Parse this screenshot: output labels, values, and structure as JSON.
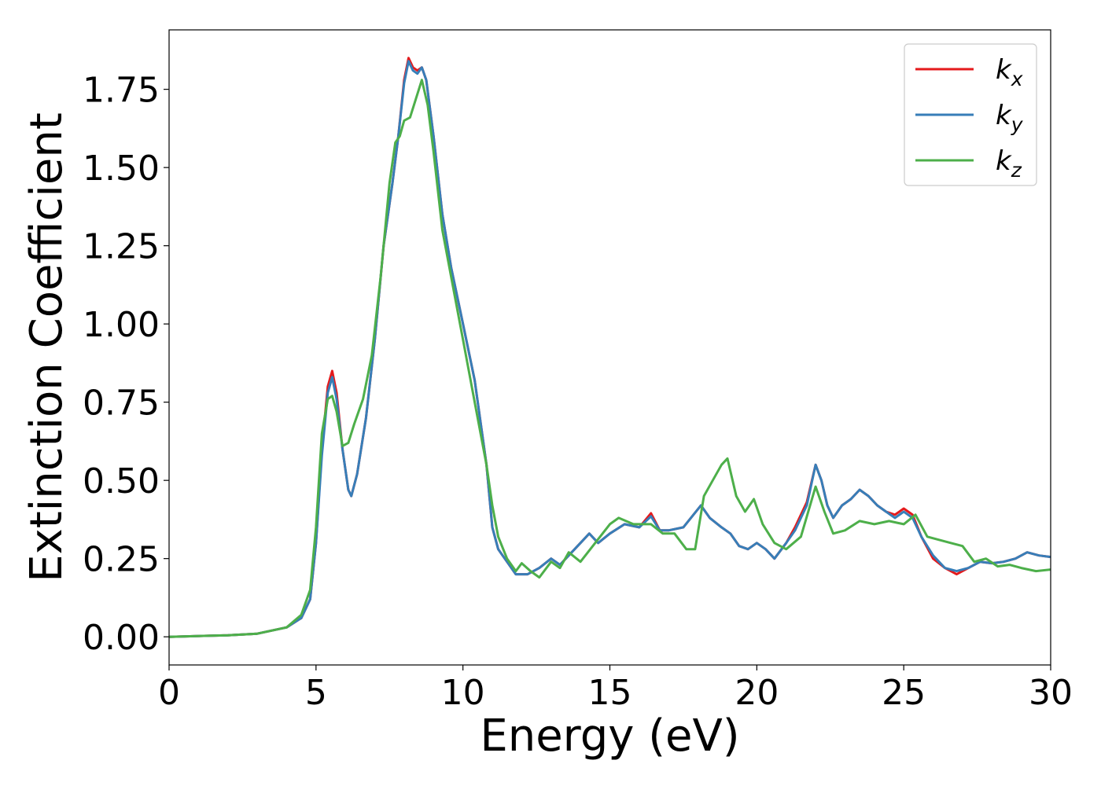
{
  "chart_data": {
    "type": "line",
    "title": "",
    "xlabel": "Energy (eV)",
    "ylabel": "Extinction Coefficient",
    "xlim": [
      0,
      30
    ],
    "ylim": [
      -0.09,
      1.94
    ],
    "xticks": [
      0,
      5,
      10,
      15,
      20,
      25,
      30
    ],
    "xtick_labels": [
      "0",
      "5",
      "10",
      "15",
      "20",
      "25",
      "30"
    ],
    "yticks": [
      0.0,
      0.25,
      0.5,
      0.75,
      1.0,
      1.25,
      1.5,
      1.75
    ],
    "ytick_labels": [
      "0.00",
      "0.25",
      "0.50",
      "0.75",
      "1.00",
      "1.25",
      "1.50",
      "1.75"
    ],
    "grid": false,
    "legend": "top-right",
    "series": [
      {
        "name": "k",
        "subscript": "x",
        "color": "#e41a1c",
        "points": [
          [
            0,
            0
          ],
          [
            2,
            0.005
          ],
          [
            3,
            0.01
          ],
          [
            4,
            0.03
          ],
          [
            4.5,
            0.06
          ],
          [
            4.8,
            0.12
          ],
          [
            5.0,
            0.3
          ],
          [
            5.2,
            0.6
          ],
          [
            5.4,
            0.8
          ],
          [
            5.55,
            0.85
          ],
          [
            5.7,
            0.78
          ],
          [
            5.9,
            0.6
          ],
          [
            6.1,
            0.47
          ],
          [
            6.2,
            0.45
          ],
          [
            6.4,
            0.52
          ],
          [
            6.7,
            0.7
          ],
          [
            7.0,
            0.95
          ],
          [
            7.3,
            1.25
          ],
          [
            7.6,
            1.45
          ],
          [
            7.8,
            1.6
          ],
          [
            8.0,
            1.78
          ],
          [
            8.15,
            1.85
          ],
          [
            8.3,
            1.82
          ],
          [
            8.45,
            1.81
          ],
          [
            8.6,
            1.82
          ],
          [
            8.75,
            1.78
          ],
          [
            9.0,
            1.6
          ],
          [
            9.3,
            1.35
          ],
          [
            9.6,
            1.18
          ],
          [
            10.0,
            1.0
          ],
          [
            10.4,
            0.82
          ],
          [
            10.8,
            0.55
          ],
          [
            11.0,
            0.35
          ],
          [
            11.2,
            0.28
          ],
          [
            11.5,
            0.24
          ],
          [
            11.8,
            0.2
          ],
          [
            12.2,
            0.2
          ],
          [
            12.6,
            0.22
          ],
          [
            13.0,
            0.25
          ],
          [
            13.3,
            0.23
          ],
          [
            13.6,
            0.26
          ],
          [
            14.0,
            0.3
          ],
          [
            14.3,
            0.33
          ],
          [
            14.6,
            0.3
          ],
          [
            15.0,
            0.33
          ],
          [
            15.5,
            0.36
          ],
          [
            16.0,
            0.35
          ],
          [
            16.4,
            0.395
          ],
          [
            16.7,
            0.34
          ],
          [
            17.0,
            0.34
          ],
          [
            17.5,
            0.35
          ],
          [
            18.1,
            0.42
          ],
          [
            18.4,
            0.38
          ],
          [
            18.8,
            0.35
          ],
          [
            19.1,
            0.33
          ],
          [
            19.4,
            0.29
          ],
          [
            19.7,
            0.28
          ],
          [
            20.0,
            0.3
          ],
          [
            20.3,
            0.28
          ],
          [
            20.6,
            0.25
          ],
          [
            21.0,
            0.3
          ],
          [
            21.3,
            0.35
          ],
          [
            21.7,
            0.43
          ],
          [
            22.0,
            0.55
          ],
          [
            22.2,
            0.5
          ],
          [
            22.4,
            0.42
          ],
          [
            22.6,
            0.38
          ],
          [
            22.9,
            0.42
          ],
          [
            23.2,
            0.44
          ],
          [
            23.5,
            0.47
          ],
          [
            23.8,
            0.45
          ],
          [
            24.1,
            0.42
          ],
          [
            24.4,
            0.4
          ],
          [
            24.7,
            0.39
          ],
          [
            25.0,
            0.41
          ],
          [
            25.3,
            0.39
          ],
          [
            25.6,
            0.32
          ],
          [
            26.0,
            0.25
          ],
          [
            26.4,
            0.22
          ],
          [
            26.8,
            0.2
          ],
          [
            27.2,
            0.22
          ],
          [
            27.6,
            0.24
          ],
          [
            28.0,
            0.235
          ],
          [
            28.4,
            0.24
          ],
          [
            28.8,
            0.25
          ],
          [
            29.2,
            0.27
          ],
          [
            29.6,
            0.26
          ],
          [
            30.0,
            0.255
          ]
        ]
      },
      {
        "name": "k",
        "subscript": "y",
        "color": "#377eb8",
        "points": [
          [
            0,
            0
          ],
          [
            2,
            0.005
          ],
          [
            3,
            0.01
          ],
          [
            4,
            0.03
          ],
          [
            4.5,
            0.06
          ],
          [
            4.8,
            0.12
          ],
          [
            5.0,
            0.3
          ],
          [
            5.2,
            0.58
          ],
          [
            5.4,
            0.78
          ],
          [
            5.55,
            0.83
          ],
          [
            5.7,
            0.76
          ],
          [
            5.9,
            0.6
          ],
          [
            6.1,
            0.47
          ],
          [
            6.2,
            0.45
          ],
          [
            6.4,
            0.52
          ],
          [
            6.7,
            0.7
          ],
          [
            7.0,
            0.95
          ],
          [
            7.3,
            1.25
          ],
          [
            7.6,
            1.45
          ],
          [
            7.8,
            1.6
          ],
          [
            8.0,
            1.77
          ],
          [
            8.15,
            1.84
          ],
          [
            8.3,
            1.81
          ],
          [
            8.45,
            1.8
          ],
          [
            8.6,
            1.82
          ],
          [
            8.75,
            1.78
          ],
          [
            9.0,
            1.6
          ],
          [
            9.3,
            1.35
          ],
          [
            9.6,
            1.18
          ],
          [
            10.0,
            1.0
          ],
          [
            10.4,
            0.82
          ],
          [
            10.8,
            0.55
          ],
          [
            11.0,
            0.35
          ],
          [
            11.2,
            0.28
          ],
          [
            11.5,
            0.24
          ],
          [
            11.8,
            0.2
          ],
          [
            12.2,
            0.2
          ],
          [
            12.6,
            0.22
          ],
          [
            13.0,
            0.25
          ],
          [
            13.3,
            0.23
          ],
          [
            13.6,
            0.26
          ],
          [
            14.0,
            0.3
          ],
          [
            14.3,
            0.33
          ],
          [
            14.6,
            0.3
          ],
          [
            15.0,
            0.33
          ],
          [
            15.5,
            0.36
          ],
          [
            16.0,
            0.35
          ],
          [
            16.4,
            0.385
          ],
          [
            16.7,
            0.34
          ],
          [
            17.0,
            0.34
          ],
          [
            17.5,
            0.35
          ],
          [
            18.1,
            0.42
          ],
          [
            18.4,
            0.38
          ],
          [
            18.8,
            0.35
          ],
          [
            19.1,
            0.33
          ],
          [
            19.4,
            0.29
          ],
          [
            19.7,
            0.28
          ],
          [
            20.0,
            0.3
          ],
          [
            20.3,
            0.28
          ],
          [
            20.6,
            0.25
          ],
          [
            21.0,
            0.3
          ],
          [
            21.3,
            0.34
          ],
          [
            21.7,
            0.42
          ],
          [
            22.0,
            0.55
          ],
          [
            22.2,
            0.5
          ],
          [
            22.4,
            0.42
          ],
          [
            22.6,
            0.38
          ],
          [
            22.9,
            0.42
          ],
          [
            23.2,
            0.44
          ],
          [
            23.5,
            0.47
          ],
          [
            23.8,
            0.45
          ],
          [
            24.1,
            0.42
          ],
          [
            24.4,
            0.4
          ],
          [
            24.7,
            0.38
          ],
          [
            25.0,
            0.4
          ],
          [
            25.3,
            0.38
          ],
          [
            25.6,
            0.32
          ],
          [
            26.0,
            0.26
          ],
          [
            26.4,
            0.22
          ],
          [
            26.8,
            0.21
          ],
          [
            27.2,
            0.22
          ],
          [
            27.6,
            0.24
          ],
          [
            28.0,
            0.235
          ],
          [
            28.4,
            0.24
          ],
          [
            28.8,
            0.25
          ],
          [
            29.2,
            0.27
          ],
          [
            29.6,
            0.26
          ],
          [
            30.0,
            0.255
          ]
        ]
      },
      {
        "name": "k",
        "subscript": "z",
        "color": "#4daf4a",
        "points": [
          [
            0,
            0
          ],
          [
            2,
            0.005
          ],
          [
            3,
            0.01
          ],
          [
            4,
            0.03
          ],
          [
            4.5,
            0.07
          ],
          [
            4.8,
            0.15
          ],
          [
            5.0,
            0.35
          ],
          [
            5.2,
            0.65
          ],
          [
            5.4,
            0.76
          ],
          [
            5.55,
            0.77
          ],
          [
            5.7,
            0.72
          ],
          [
            5.9,
            0.61
          ],
          [
            6.1,
            0.62
          ],
          [
            6.3,
            0.68
          ],
          [
            6.6,
            0.76
          ],
          [
            6.9,
            0.9
          ],
          [
            7.2,
            1.15
          ],
          [
            7.5,
            1.45
          ],
          [
            7.7,
            1.58
          ],
          [
            7.85,
            1.6
          ],
          [
            8.0,
            1.65
          ],
          [
            8.2,
            1.66
          ],
          [
            8.4,
            1.72
          ],
          [
            8.6,
            1.78
          ],
          [
            8.8,
            1.7
          ],
          [
            9.0,
            1.55
          ],
          [
            9.3,
            1.3
          ],
          [
            9.6,
            1.15
          ],
          [
            10.0,
            0.95
          ],
          [
            10.4,
            0.75
          ],
          [
            10.8,
            0.55
          ],
          [
            11.0,
            0.42
          ],
          [
            11.2,
            0.32
          ],
          [
            11.5,
            0.25
          ],
          [
            11.8,
            0.21
          ],
          [
            12.0,
            0.235
          ],
          [
            12.3,
            0.21
          ],
          [
            12.6,
            0.19
          ],
          [
            13.0,
            0.24
          ],
          [
            13.3,
            0.22
          ],
          [
            13.6,
            0.27
          ],
          [
            14.0,
            0.24
          ],
          [
            14.5,
            0.3
          ],
          [
            15.0,
            0.36
          ],
          [
            15.3,
            0.38
          ],
          [
            15.8,
            0.36
          ],
          [
            16.4,
            0.36
          ],
          [
            16.8,
            0.33
          ],
          [
            17.2,
            0.33
          ],
          [
            17.6,
            0.28
          ],
          [
            17.9,
            0.28
          ],
          [
            18.2,
            0.45
          ],
          [
            18.5,
            0.5
          ],
          [
            18.8,
            0.55
          ],
          [
            19.0,
            0.57
          ],
          [
            19.3,
            0.45
          ],
          [
            19.6,
            0.4
          ],
          [
            19.9,
            0.44
          ],
          [
            20.2,
            0.36
          ],
          [
            20.6,
            0.3
          ],
          [
            21.0,
            0.28
          ],
          [
            21.5,
            0.32
          ],
          [
            22.0,
            0.48
          ],
          [
            22.3,
            0.4
          ],
          [
            22.6,
            0.33
          ],
          [
            23.0,
            0.34
          ],
          [
            23.5,
            0.37
          ],
          [
            24.0,
            0.36
          ],
          [
            24.5,
            0.37
          ],
          [
            25.0,
            0.36
          ],
          [
            25.4,
            0.39
          ],
          [
            25.8,
            0.32
          ],
          [
            26.2,
            0.31
          ],
          [
            26.6,
            0.3
          ],
          [
            27.0,
            0.29
          ],
          [
            27.4,
            0.24
          ],
          [
            27.8,
            0.25
          ],
          [
            28.2,
            0.225
          ],
          [
            28.6,
            0.23
          ],
          [
            29.0,
            0.22
          ],
          [
            29.5,
            0.21
          ],
          [
            30.0,
            0.215
          ]
        ]
      }
    ]
  }
}
